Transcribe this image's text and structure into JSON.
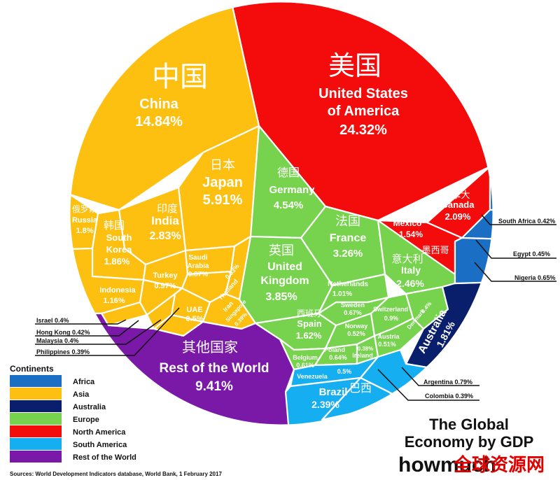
{
  "chart_data": {
    "type": "voronoi-treemap",
    "title_lines": [
      "The Global",
      "Economy by GDP"
    ],
    "brand": "howmuch",
    "watermark": "全球资源网",
    "source": "Sources: World Development Indicators database, World Bank, 1 February 2017",
    "legend_title": "Continents",
    "continents": [
      {
        "name": "Africa",
        "color": "#1a6fc4"
      },
      {
        "name": "Asia",
        "color": "#fdc010"
      },
      {
        "name": "Australia",
        "color": "#0a1f6b"
      },
      {
        "name": "Europe",
        "color": "#77d34e"
      },
      {
        "name": "North America",
        "color": "#f40b0b"
      },
      {
        "name": "South America",
        "color": "#15aef0"
      },
      {
        "name": "Rest of the World",
        "color": "#7a18a8"
      }
    ],
    "countries": [
      {
        "name": "United States of America",
        "name_lines": [
          "United States",
          "of America"
        ],
        "cn": "美国",
        "value": "24.32%",
        "continent": "North America"
      },
      {
        "name": "China",
        "cn": "中国",
        "value": "14.84%",
        "continent": "Asia"
      },
      {
        "name": "Japan",
        "cn": "日本",
        "value": "5.91%",
        "continent": "Asia"
      },
      {
        "name": "Germany",
        "cn": "德国",
        "value": "4.54%",
        "continent": "Europe"
      },
      {
        "name": "United Kingdom",
        "name_lines": [
          "United",
          "Kingdom"
        ],
        "cn": "英国",
        "value": "3.85%",
        "continent": "Europe"
      },
      {
        "name": "France",
        "cn": "法国",
        "value": "3.26%",
        "continent": "Europe"
      },
      {
        "name": "India",
        "cn": "印度",
        "value": "2.83%",
        "continent": "Asia"
      },
      {
        "name": "Italy",
        "cn": "意大利",
        "value": "2.46%",
        "continent": "Europe"
      },
      {
        "name": "Brazil",
        "cn": "巴西",
        "value": "2.39%",
        "continent": "South America"
      },
      {
        "name": "Canada",
        "cn": "加拿大",
        "value": "2.09%",
        "continent": "North America"
      },
      {
        "name": "South Korea",
        "name_lines": [
          "South",
          "Korea"
        ],
        "cn": "韩国",
        "value": "1.86%",
        "continent": "Asia"
      },
      {
        "name": "Russia",
        "cn": "俄罗斯",
        "value": "1.8%",
        "continent": "Asia"
      },
      {
        "name": "Australia",
        "value": "1.81%",
        "continent": "Australia"
      },
      {
        "name": "Spain",
        "cn": "西班牙",
        "value": "1.62%",
        "continent": "Europe"
      },
      {
        "name": "Mexico",
        "cn": "墨西哥",
        "value": "1.54%",
        "continent": "North America"
      },
      {
        "name": "Indonesia",
        "value": "1.16%",
        "continent": "Asia"
      },
      {
        "name": "Netherlands",
        "value": "1.01%",
        "continent": "Europe"
      },
      {
        "name": "Turkey",
        "value": "0.97%",
        "continent": "Asia"
      },
      {
        "name": "Switzerland",
        "value": "0.9%",
        "continent": "Europe"
      },
      {
        "name": "Saudi Arabia",
        "name_lines": [
          "Saudi",
          "Arabia"
        ],
        "value": "0.87%",
        "continent": "Asia"
      },
      {
        "name": "Argentina",
        "value": "0.79%",
        "continent": "South America"
      },
      {
        "name": "Sweden",
        "value": "0.67%",
        "continent": "Europe"
      },
      {
        "name": "Nigeria",
        "value": "0.65%",
        "continent": "Africa"
      },
      {
        "name": "Poland",
        "value": "0.64%",
        "continent": "Europe"
      },
      {
        "name": "Belgium",
        "value": "0.61%",
        "continent": "Europe"
      },
      {
        "name": "Iran",
        "value": "0.57%",
        "continent": "Asia"
      },
      {
        "name": "Thailand",
        "value": "0.53%",
        "continent": "Asia"
      },
      {
        "name": "Norway",
        "value": "0.52%",
        "continent": "Europe"
      },
      {
        "name": "Austria",
        "value": "0.51%",
        "continent": "Europe"
      },
      {
        "name": "Venezuela",
        "value": "0.5%",
        "continent": "South America"
      },
      {
        "name": "UAE",
        "value": "0.5%",
        "continent": "Asia"
      },
      {
        "name": "Egypt",
        "value": "0.45%",
        "continent": "Africa"
      },
      {
        "name": "South Africa",
        "value": "0.42%",
        "continent": "Africa"
      },
      {
        "name": "Hong Kong",
        "value": "0.42%",
        "continent": "Asia"
      },
      {
        "name": "Denmark",
        "value": "0.4%",
        "continent": "Europe"
      },
      {
        "name": "Israel",
        "value": "0.4%",
        "continent": "Asia"
      },
      {
        "name": "Malaysia",
        "value": "0.4%",
        "continent": "Asia"
      },
      {
        "name": "Singapore",
        "value": "0.39%",
        "continent": "Asia"
      },
      {
        "name": "Philippines",
        "value": "0.39%",
        "continent": "Asia"
      },
      {
        "name": "Colombia",
        "value": "0.39%",
        "continent": "South America"
      },
      {
        "name": "Ireland",
        "value": "0.38%",
        "continent": "Europe"
      },
      {
        "name": "Rest of the World",
        "cn": "其他国家",
        "value": "9.41%",
        "continent": "Rest of the World"
      }
    ]
  }
}
